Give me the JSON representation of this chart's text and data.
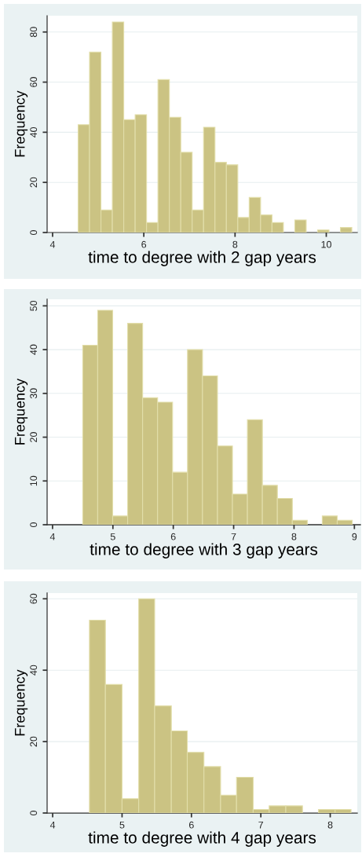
{
  "chart_data": [
    {
      "type": "histogram",
      "xlabel": "time to degree with 2 gap years",
      "ylabel": "Frequency",
      "color": "#cbc383",
      "grid": "y",
      "bins": [
        4.56,
        4.81,
        5.06,
        5.31,
        5.56,
        5.81,
        6.06,
        6.31,
        6.56,
        6.81,
        7.06,
        7.31,
        7.56,
        7.81,
        8.06,
        8.31,
        8.56,
        8.81,
        9.06,
        9.31,
        9.56,
        9.81,
        10.06,
        10.31,
        10.56
      ],
      "values": [
        43,
        72,
        9,
        84,
        45,
        47,
        4,
        61,
        46,
        32,
        9,
        42,
        28,
        27,
        6,
        14,
        7,
        4,
        0,
        5,
        0,
        1,
        0,
        2
      ],
      "xlim": [
        3.88,
        10.68
      ],
      "xticks": [
        4,
        6,
        8,
        10
      ],
      "ylim": [
        0,
        86.5
      ],
      "yticks": [
        0,
        20,
        40,
        60,
        80
      ]
    },
    {
      "type": "histogram",
      "xlabel": "time to degree with 3 gap years",
      "ylabel": "Frequency",
      "color": "#cbc383",
      "grid": "y",
      "bins": [
        4.5,
        4.748,
        4.996,
        5.244,
        5.492,
        5.74,
        5.988,
        6.236,
        6.484,
        6.732,
        6.98,
        7.228,
        7.476,
        7.724,
        7.972,
        8.22,
        8.468,
        8.716,
        8.964
      ],
      "values": [
        41,
        49,
        2,
        46,
        29,
        28,
        12,
        40,
        34,
        18,
        7,
        24,
        9,
        6,
        1,
        0,
        2,
        1
      ],
      "xlim": [
        3.91,
        9.1
      ],
      "xticks": [
        4,
        5,
        6,
        7,
        8,
        9
      ],
      "ylim": [
        0,
        51.5
      ],
      "yticks": [
        0,
        10,
        20,
        30,
        40,
        50
      ]
    },
    {
      "type": "histogram",
      "xlabel": "time to degree with 4 gap years",
      "ylabel": "Frequency",
      "color": "#cbc383",
      "grid": "y",
      "bins": [
        4.53,
        4.76,
        5.0,
        5.24,
        5.47,
        5.71,
        5.94,
        6.18,
        6.42,
        6.65,
        6.89,
        7.12,
        7.36,
        7.6,
        7.83,
        8.07,
        8.3
      ],
      "values": [
        54,
        36,
        4,
        60,
        30,
        23,
        17,
        13,
        5,
        10,
        1,
        2,
        2,
        0,
        1,
        1
      ],
      "xlim": [
        3.92,
        8.39
      ],
      "xticks": [
        4,
        5,
        6,
        7,
        8
      ],
      "ylim": [
        0,
        61.6
      ],
      "yticks": [
        0,
        20,
        40,
        60
      ]
    }
  ]
}
